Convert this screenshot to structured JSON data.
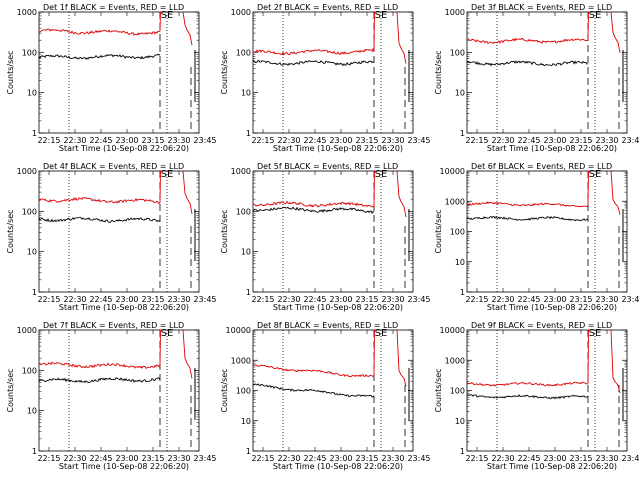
{
  "figure": {
    "xlabel": "Start Time (10-Sep-08 22:06:20)",
    "ylabel": "Counts/sec",
    "x_tick_labels": [
      "22:15",
      "22:30",
      "22:45",
      "23:00",
      "23:15",
      "23:30",
      "23:45"
    ],
    "flag_text": "SE",
    "series_colors": {
      "events": "#000000",
      "lld": "#dd0000"
    }
  },
  "chart_data": [
    {
      "type": "line",
      "title": "Det 1f BLACK = Events, RED = LLD",
      "yscale": "log",
      "ylim": [
        1,
        1000
      ],
      "y_tick_labels": [
        "1",
        "10",
        "100",
        "1000"
      ],
      "x_unit": "minutes after 22:06:20",
      "series": [
        {
          "key": "events",
          "level_start": 75,
          "level_end": 80,
          "spike_top": null
        },
        {
          "key": "lld",
          "level_start": 340,
          "level_end": 300,
          "spike_top": 1000
        }
      ]
    },
    {
      "type": "line",
      "title": "Det 2f BLACK = Events, RED = LLD",
      "yscale": "log",
      "ylim": [
        1,
        1000
      ],
      "y_tick_labels": [
        "1",
        "10",
        "100",
        "1000"
      ],
      "x_unit": "minutes after 22:06:20",
      "series": [
        {
          "key": "events",
          "level_start": 55,
          "level_end": 55,
          "spike_top": null
        },
        {
          "key": "lld",
          "level_start": 100,
          "level_end": 105,
          "spike_top": 1000
        }
      ]
    },
    {
      "type": "line",
      "title": "Det 3f BLACK = Events, RED = LLD",
      "yscale": "log",
      "ylim": [
        1,
        1000
      ],
      "y_tick_labels": [
        "1",
        "10",
        "100",
        "1000"
      ],
      "x_unit": "minutes after 22:06:20",
      "series": [
        {
          "key": "events",
          "level_start": 55,
          "level_end": 52,
          "spike_top": null
        },
        {
          "key": "lld",
          "level_start": 190,
          "level_end": 195,
          "spike_top": 1000
        }
      ]
    },
    {
      "type": "line",
      "title": "Det 4f BLACK = Events, RED = LLD",
      "yscale": "log",
      "ylim": [
        1,
        1000
      ],
      "y_tick_labels": [
        "1",
        "10",
        "100",
        "1000"
      ],
      "x_unit": "minutes after 22:06:20",
      "series": [
        {
          "key": "events",
          "level_start": 65,
          "level_end": 60,
          "spike_top": null
        },
        {
          "key": "lld",
          "level_start": 200,
          "level_end": 175,
          "spike_top": 1000
        }
      ]
    },
    {
      "type": "line",
      "title": "Det 5f BLACK = Events, RED = LLD",
      "yscale": "log",
      "ylim": [
        1,
        1000
      ],
      "y_tick_labels": [
        "1",
        "10",
        "100",
        "1000"
      ],
      "x_unit": "minutes after 22:06:20",
      "series": [
        {
          "key": "events",
          "level_start": 115,
          "level_end": 105,
          "spike_top": null
        },
        {
          "key": "lld",
          "level_start": 155,
          "level_end": 145,
          "spike_top": 1000
        }
      ]
    },
    {
      "type": "line",
      "title": "Det 6f BLACK = Events, RED = LLD",
      "yscale": "log",
      "ylim": [
        1,
        10000
      ],
      "y_tick_labels": [
        "1",
        "10",
        "100",
        "1000",
        "10000"
      ],
      "x_unit": "minutes after 22:06:20",
      "series": [
        {
          "key": "events",
          "level_start": 280,
          "level_end": 260,
          "spike_top": null
        },
        {
          "key": "lld",
          "level_start": 850,
          "level_end": 720,
          "spike_top": 10000
        }
      ]
    },
    {
      "type": "line",
      "title": "Det 7f BLACK = Events, RED = LLD",
      "yscale": "log",
      "ylim": [
        1,
        1000
      ],
      "y_tick_labels": [
        "1",
        "10",
        "100",
        "1000"
      ],
      "x_unit": "minutes after 22:06:20",
      "series": [
        {
          "key": "events",
          "level_start": 55,
          "level_end": 60,
          "spike_top": null
        },
        {
          "key": "lld",
          "level_start": 140,
          "level_end": 125,
          "spike_top": 1000
        }
      ]
    },
    {
      "type": "line",
      "title": "Det 8f BLACK = Events, RED = LLD",
      "yscale": "log",
      "ylim": [
        1,
        10000
      ],
      "y_tick_labels": [
        "1",
        "10",
        "100",
        "1000",
        "10000"
      ],
      "x_unit": "minutes after 22:06:20",
      "series": [
        {
          "key": "events",
          "level_start": 150,
          "level_end": 60,
          "spike_top": null
        },
        {
          "key": "lld",
          "level_start": 650,
          "level_end": 280,
          "spike_top": 10000
        }
      ]
    },
    {
      "type": "line",
      "title": "Det 9f BLACK = Events, RED = LLD",
      "yscale": "log",
      "ylim": [
        1,
        10000
      ],
      "y_tick_labels": [
        "1",
        "10",
        "100",
        "1000",
        "10000"
      ],
      "x_unit": "minutes after 22:06:20",
      "series": [
        {
          "key": "events",
          "level_start": 65,
          "level_end": 60,
          "spike_top": null
        },
        {
          "key": "lld",
          "level_start": 160,
          "level_end": 165,
          "spike_top": 10000
        }
      ]
    }
  ]
}
